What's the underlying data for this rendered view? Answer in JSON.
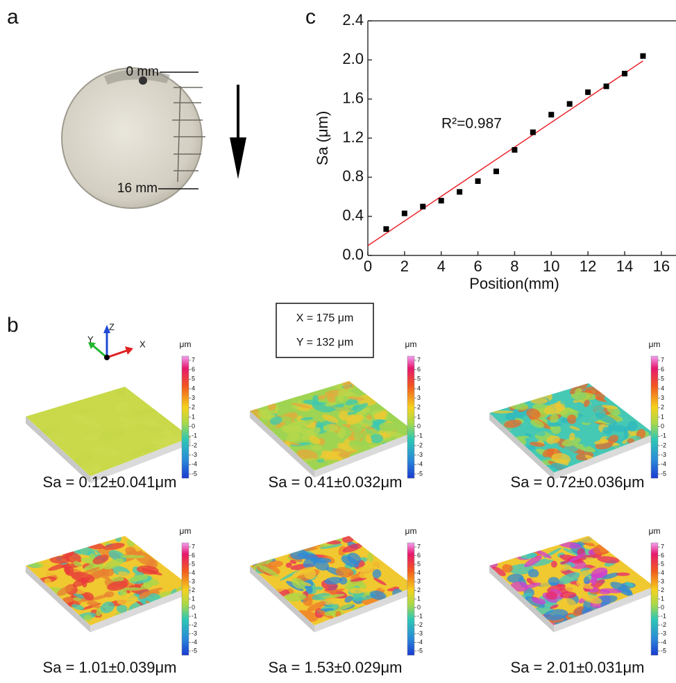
{
  "panel_labels": [
    "a",
    "b",
    "c"
  ],
  "photo": {
    "labels": [
      "0 mm",
      "16 mm"
    ]
  },
  "chart_data": {
    "type": "scatter",
    "x": [
      1,
      2,
      3,
      4,
      5,
      6,
      7,
      8,
      9,
      10,
      11,
      12,
      13,
      14,
      15
    ],
    "values": [
      0.27,
      0.43,
      0.5,
      0.56,
      0.65,
      0.76,
      0.86,
      1.08,
      1.26,
      1.44,
      1.55,
      1.67,
      1.73,
      1.86,
      2.04
    ],
    "color": "#000000",
    "fit": {
      "x": [
        0,
        15
      ],
      "values": [
        0.1,
        1.99
      ],
      "color": "#e8232a"
    },
    "annotation": "R²=0.987",
    "xlabel": "Position(mm)",
    "ylabel": "Sa (μm)",
    "xlim": [
      0,
      16.8
    ],
    "ylim": [
      0,
      2.4
    ],
    "xticks": [
      0,
      2,
      4,
      6,
      8,
      10,
      12,
      14,
      16
    ],
    "yticks": [
      {
        "value": 0,
        "label": "0.0"
      },
      0.4,
      0.8,
      1.2,
      1.6,
      {
        "value": 2,
        "label": "2.0"
      },
      2.4
    ]
  },
  "surfaces": {
    "axes": [
      "X",
      "Y",
      "Z"
    ],
    "scan": [
      "X = 175 μm",
      "Y = 132 μm"
    ],
    "colorbar": {
      "unit": "μm",
      "ticks": [
        7,
        6,
        5,
        4,
        3,
        2,
        1,
        0,
        -1,
        -2,
        -3,
        -4,
        -5
      ]
    },
    "captions": [
      "Sa = 0.12±0.041μm",
      "Sa = 0.41±0.032μm",
      "Sa = 0.72±0.036μm",
      "Sa = 1.01±0.039μm",
      "Sa = 1.53±0.029μm",
      "Sa = 2.01±0.031μm"
    ]
  }
}
